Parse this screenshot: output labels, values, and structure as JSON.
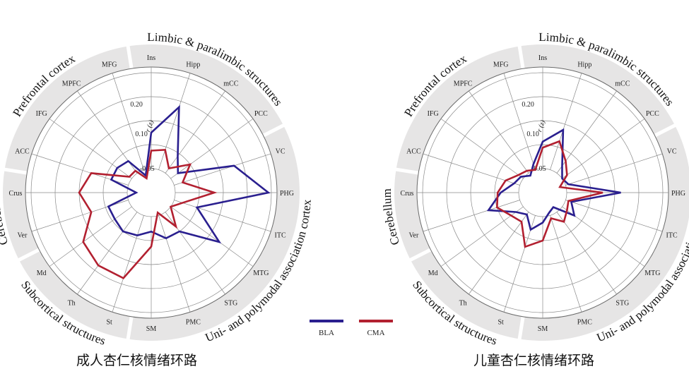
{
  "axes": [
    "Ins",
    "Hipp",
    "mCC",
    "PCC",
    "VC",
    "PHG",
    "ITC",
    "MTG",
    "STG",
    "PMC",
    "SM",
    "St",
    "Th",
    "Md",
    "Ver",
    "Crus",
    "ACC",
    "IFG",
    "MPFC",
    "MFG"
  ],
  "groups": [
    {
      "label": "Limbic & paralimbic structures",
      "span": [
        0,
        3
      ]
    },
    {
      "label": "Uni- and polymodal association cortex",
      "span": [
        4,
        10
      ]
    },
    {
      "label": "Subcortical structures",
      "span": [
        11,
        13
      ]
    },
    {
      "label": "Cerebellum",
      "span": [
        14,
        15
      ]
    },
    {
      "label": "Prefrontal cortex",
      "span": [
        16,
        19
      ]
    }
  ],
  "r_tick_labels": [
    "-0.05",
    "0.10",
    "0.20"
  ],
  "r_axis_label": "r (z)",
  "legend": [
    {
      "name": "BLA",
      "color": "#2a1f8f"
    },
    {
      "name": "CMA",
      "color": "#b22030"
    }
  ],
  "chart_data": [
    {
      "type": "radar",
      "caption": "成人杏仁核情绪环路",
      "rlim": [
        -0.1,
        0.3
      ],
      "series": [
        {
          "name": "BLA",
          "values": [
            0.1,
            0.2,
            0.05,
            0.01,
            0.19,
            0.29,
            0.06,
            0.18,
            0.06,
            0.06,
            0.03,
            0.05,
            0.06,
            0.05,
            0.05,
            -0.05,
            0.04,
            0.04,
            0.03,
            -0.04
          ]
        },
        {
          "name": "CMA",
          "values": [
            0.04,
            0.05,
            0.0,
            0.06,
            0.01,
            0.11,
            0.01,
            -0.02,
            0.04,
            -0.03,
            0.08,
            0.2,
            0.2,
            0.18,
            0.11,
            0.14,
            0.11,
            -0.01,
            -0.01,
            -0.05
          ]
        }
      ]
    },
    {
      "type": "radar",
      "caption": "儿童杏仁核情绪环路",
      "rlim": [
        -0.1,
        0.3
      ],
      "series": [
        {
          "name": "BLA",
          "values": [
            0.07,
            0.12,
            0.01,
            -0.02,
            -0.01,
            0.16,
            0.0,
            0.03,
            -0.04,
            -0.03,
            0.0,
            0.03,
            -0.01,
            0.01,
            0.09,
            0.04,
            0.0,
            -0.01,
            -0.03,
            0.0
          ]
        },
        {
          "name": "CMA",
          "values": [
            0.05,
            0.08,
            0.03,
            0.0,
            -0.04,
            0.1,
            -0.01,
            0.0,
            0.02,
            -0.01,
            0.06,
            0.09,
            0.02,
            0.03,
            0.06,
            0.05,
            0.03,
            0.0,
            -0.01,
            -0.02
          ]
        }
      ]
    }
  ]
}
